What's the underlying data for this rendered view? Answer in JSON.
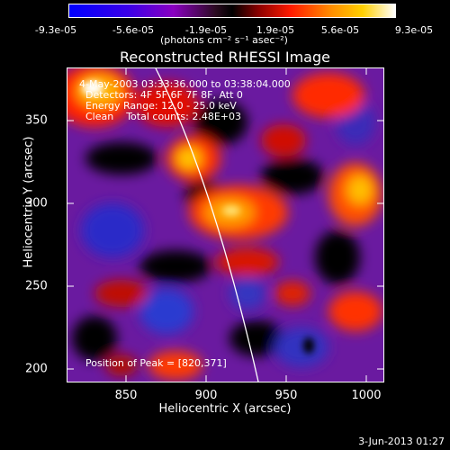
{
  "colorbar": {
    "ticks": [
      "-9.3e-05",
      "-5.6e-05",
      "-1.9e-05",
      "1.9e-05",
      "5.6e-05",
      "9.3e-05"
    ],
    "units": "(photons cm⁻² s⁻¹ asec⁻²)"
  },
  "title": "Reconstructed RHESSI Image",
  "info": {
    "line1": "4-May-2003 03:33:36.000 to 03:38:04.000",
    "line2": "Detectors: 4F 5F 6F 7F 8F, Att 0",
    "line3": "Energy Range: 12.0 - 25.0 keV",
    "line4": "Clean    Total counts: 2.48E+03",
    "peak": "Position of Peak = [820,371]"
  },
  "axes": {
    "xlabel": "Heliocentric X (arcsec)",
    "ylabel": "Heliocentric Y (arcsec)",
    "xticks": [
      "850",
      "900",
      "950",
      "1000"
    ],
    "yticks": [
      "200",
      "250",
      "300",
      "350"
    ]
  },
  "datestamp": "3-Jun-2013 01:27"
}
